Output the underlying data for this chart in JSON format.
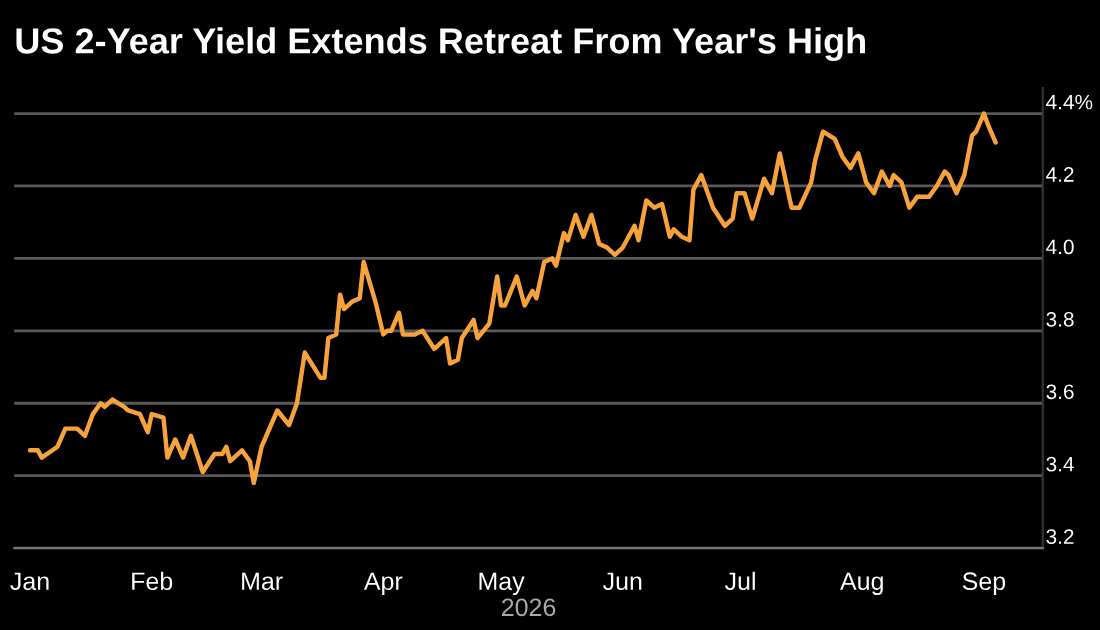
{
  "chart_data": {
    "type": "line",
    "title": "US 2-Year Yield Extends Retreat From Year's High",
    "xlabel": "2026",
    "x": [
      "2026-01-01",
      "2026-01-03",
      "2026-01-04",
      "2026-01-08",
      "2026-01-10",
      "2026-01-13",
      "2026-01-15",
      "2026-01-17",
      "2026-01-19",
      "2026-01-20",
      "2026-01-22",
      "2026-01-25",
      "2026-01-26",
      "2026-01-29",
      "2026-01-31",
      "2026-02-01",
      "2026-02-04",
      "2026-02-05",
      "2026-02-07",
      "2026-02-09",
      "2026-02-11",
      "2026-02-14",
      "2026-02-17",
      "2026-02-19",
      "2026-02-20",
      "2026-02-21",
      "2026-02-24",
      "2026-02-26",
      "2026-02-27",
      "2026-03-01",
      "2026-03-05",
      "2026-03-08",
      "2026-03-10",
      "2026-03-12",
      "2026-03-16",
      "2026-03-17",
      "2026-03-18",
      "2026-03-20",
      "2026-03-21",
      "2026-03-22",
      "2026-03-24",
      "2026-03-26",
      "2026-03-27",
      "2026-03-30",
      "2026-04-01",
      "2026-04-02",
      "2026-04-03",
      "2026-04-05",
      "2026-04-06",
      "2026-04-09",
      "2026-04-11",
      "2026-04-14",
      "2026-04-17",
      "2026-04-18",
      "2026-04-20",
      "2026-04-21",
      "2026-04-24",
      "2026-04-25",
      "2026-04-28",
      "2026-04-30",
      "2026-05-01",
      "2026-05-02",
      "2026-05-05",
      "2026-05-07",
      "2026-05-09",
      "2026-05-10",
      "2026-05-12",
      "2026-05-14",
      "2026-05-15",
      "2026-05-17",
      "2026-05-18",
      "2026-05-20",
      "2026-05-22",
      "2026-05-24",
      "2026-05-26",
      "2026-05-28",
      "2026-05-30",
      "2026-06-01",
      "2026-06-04",
      "2026-06-05",
      "2026-06-07",
      "2026-06-09",
      "2026-06-11",
      "2026-06-13",
      "2026-06-14",
      "2026-06-16",
      "2026-06-18",
      "2026-06-19",
      "2026-06-21",
      "2026-06-22",
      "2026-06-24",
      "2026-06-27",
      "2026-06-29",
      "2026-06-30",
      "2026-07-02",
      "2026-07-04",
      "2026-07-07",
      "2026-07-09",
      "2026-07-11",
      "2026-07-14",
      "2026-07-16",
      "2026-07-19",
      "2026-07-20",
      "2026-07-22",
      "2026-07-25",
      "2026-07-27",
      "2026-07-29",
      "2026-07-31",
      "2026-08-02",
      "2026-08-04",
      "2026-08-06",
      "2026-08-08",
      "2026-08-09",
      "2026-08-11",
      "2026-08-13",
      "2026-08-15",
      "2026-08-18",
      "2026-08-20",
      "2026-08-22",
      "2026-08-23",
      "2026-08-25",
      "2026-08-27",
      "2026-08-29",
      "2026-08-30",
      "2026-09-01",
      "2026-09-02",
      "2026-09-04"
    ],
    "series": [
      {
        "color": "#f7a23b",
        "values": [
          3.47,
          3.47,
          3.45,
          3.48,
          3.53,
          3.53,
          3.51,
          3.57,
          3.6,
          3.59,
          3.61,
          3.59,
          3.58,
          3.57,
          3.52,
          3.57,
          3.56,
          3.45,
          3.5,
          3.45,
          3.51,
          3.41,
          3.46,
          3.46,
          3.48,
          3.44,
          3.47,
          3.44,
          3.38,
          3.48,
          3.58,
          3.54,
          3.6,
          3.74,
          3.67,
          3.67,
          3.78,
          3.79,
          3.9,
          3.86,
          3.88,
          3.89,
          3.99,
          3.88,
          3.79,
          3.8,
          3.8,
          3.85,
          3.79,
          3.79,
          3.8,
          3.75,
          3.78,
          3.71,
          3.72,
          3.78,
          3.83,
          3.78,
          3.82,
          3.95,
          3.87,
          3.87,
          3.95,
          3.87,
          3.91,
          3.89,
          3.99,
          4.0,
          3.98,
          4.07,
          4.05,
          4.12,
          4.06,
          4.12,
          4.04,
          4.03,
          4.01,
          4.03,
          4.09,
          4.05,
          4.16,
          4.14,
          4.15,
          4.06,
          4.08,
          4.06,
          4.05,
          4.19,
          4.23,
          4.2,
          4.14,
          4.09,
          4.11,
          4.18,
          4.18,
          4.11,
          4.22,
          4.18,
          4.29,
          4.14,
          4.14,
          4.21,
          4.27,
          4.35,
          4.33,
          4.28,
          4.25,
          4.29,
          4.21,
          4.18,
          4.24,
          4.2,
          4.23,
          4.21,
          4.14,
          4.17,
          4.17,
          4.2,
          4.24,
          4.23,
          4.18,
          4.23,
          4.34,
          4.35,
          4.4,
          4.37,
          4.32
        ]
      }
    ],
    "xlim": [
      "2025-12-28",
      "2026-09-16"
    ],
    "ylim": [
      3.2,
      4.47
    ],
    "xticks": [
      {
        "value": "2026-01-01",
        "label": "Jan"
      },
      {
        "value": "2026-02-01",
        "label": "Feb"
      },
      {
        "value": "2026-03-01",
        "label": "Mar"
      },
      {
        "value": "2026-04-01",
        "label": "Apr"
      },
      {
        "value": "2026-05-01",
        "label": "May"
      },
      {
        "value": "2026-06-01",
        "label": "Jun"
      },
      {
        "value": "2026-07-01",
        "label": "Jul"
      },
      {
        "value": "2026-08-01",
        "label": "Aug"
      },
      {
        "value": "2026-09-01",
        "label": "Sep"
      }
    ],
    "yticks": [
      3.2,
      3.4,
      3.6,
      3.8,
      {
        "value": 4.0,
        "label": "4.0"
      },
      4.2,
      {
        "value": 4.4,
        "label": "4.4%"
      }
    ],
    "grid": "y",
    "line_style": "solid",
    "marker": "none"
  }
}
